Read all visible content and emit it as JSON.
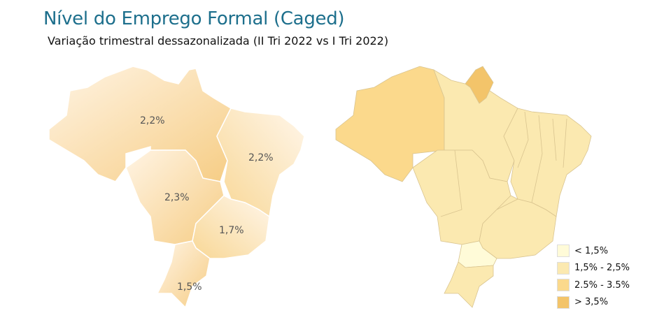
{
  "title": "Nível do Emprego Formal (Caged)",
  "subtitle": "Variação trimestral dessazonalizada (II Tri 2022 vs I Tri 2022)",
  "regions": [
    {
      "name": "Norte",
      "value": "2,2%"
    },
    {
      "name": "Nordeste",
      "value": "2,2%"
    },
    {
      "name": "Centro-Oeste",
      "value": "2,3%"
    },
    {
      "name": "Sudeste",
      "value": "1,7%"
    },
    {
      "name": "Sul",
      "value": "1,5%"
    }
  ],
  "legend": [
    {
      "label": "< 1,5%",
      "color": "#fffbd8"
    },
    {
      "label": "1,5% - 2,5%",
      "color": "#fbe9b0"
    },
    {
      "label": "2.5% - 3.5%",
      "color": "#fbd98c"
    },
    {
      "label": "> 3,5%",
      "color": "#f3c46a"
    }
  ]
}
